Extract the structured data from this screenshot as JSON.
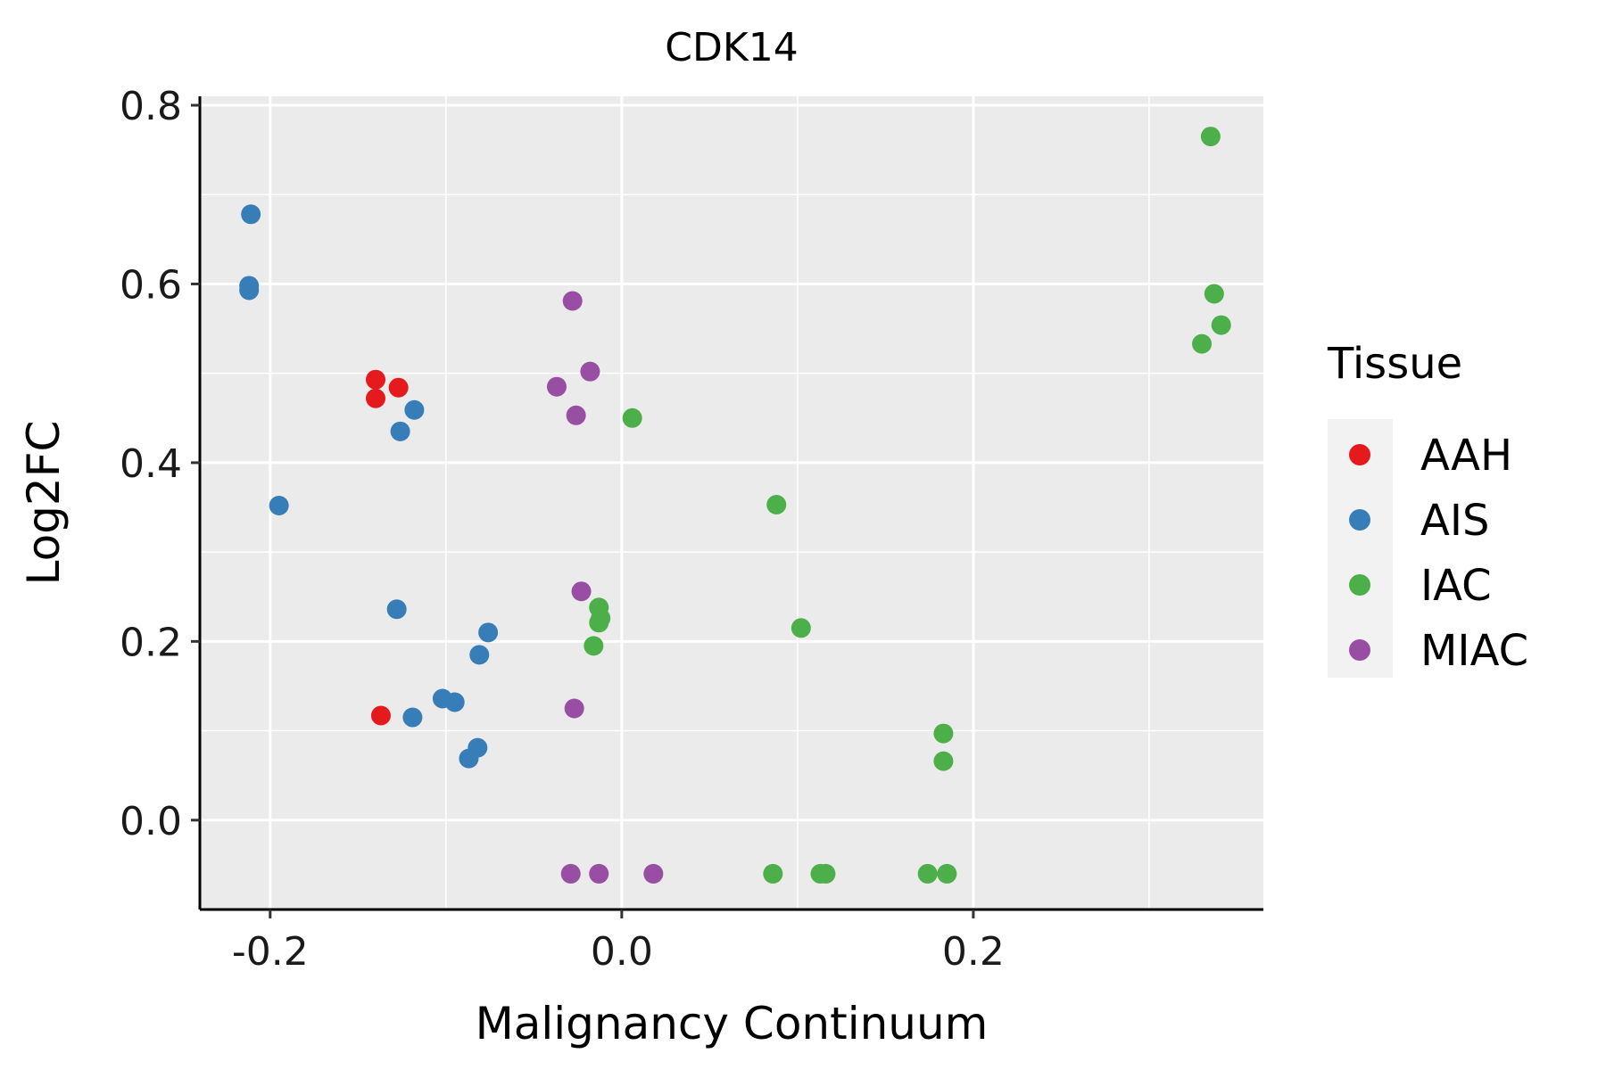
{
  "chart_data": {
    "type": "scatter",
    "title": "CDK14",
    "xlabel": "Malignancy Continuum",
    "ylabel": "Log2FC",
    "xlim": [
      -0.24,
      0.365
    ],
    "ylim": [
      -0.1,
      0.81
    ],
    "xticks": [
      -0.2,
      0.0,
      0.2
    ],
    "xtick_labels": [
      "-0.2",
      "0.0",
      "0.2"
    ],
    "yticks": [
      0.0,
      0.2,
      0.4,
      0.6,
      0.8
    ],
    "ytick_labels": [
      "0.0",
      "0.2",
      "0.4",
      "0.6",
      "0.8"
    ],
    "grid": true,
    "legend": {
      "title": "Tissue",
      "placement": "right",
      "entries": [
        "AAH",
        "AIS",
        "IAC",
        "MIAC"
      ]
    },
    "colors": {
      "AAH": "#e41a1c",
      "AIS": "#377eb8",
      "IAC": "#4daf4a",
      "MIAC": "#984ea3",
      "panel": "#ebebeb",
      "grid": "#ffffff"
    },
    "series": [
      {
        "name": "AAH",
        "points": [
          [
            -0.14,
            0.493
          ],
          [
            -0.127,
            0.484
          ],
          [
            -0.14,
            0.472
          ],
          [
            -0.137,
            0.117
          ]
        ]
      },
      {
        "name": "AIS",
        "points": [
          [
            -0.211,
            0.678
          ],
          [
            -0.212,
            0.598
          ],
          [
            -0.212,
            0.593
          ],
          [
            -0.118,
            0.459
          ],
          [
            -0.126,
            0.435
          ],
          [
            -0.195,
            0.352
          ],
          [
            -0.128,
            0.236
          ],
          [
            -0.076,
            0.21
          ],
          [
            -0.081,
            0.185
          ],
          [
            -0.102,
            0.136
          ],
          [
            -0.095,
            0.132
          ],
          [
            -0.119,
            0.115
          ],
          [
            -0.082,
            0.081
          ],
          [
            -0.087,
            0.069
          ]
        ]
      },
      {
        "name": "IAC",
        "points": [
          [
            0.335,
            0.765
          ],
          [
            0.337,
            0.589
          ],
          [
            0.341,
            0.554
          ],
          [
            0.33,
            0.533
          ],
          [
            0.006,
            0.45
          ],
          [
            0.088,
            0.353
          ],
          [
            -0.013,
            0.238
          ],
          [
            -0.012,
            0.226
          ],
          [
            -0.013,
            0.221
          ],
          [
            0.102,
            0.215
          ],
          [
            -0.016,
            0.195
          ],
          [
            0.183,
            0.097
          ],
          [
            0.183,
            0.066
          ],
          [
            0.086,
            -0.06
          ],
          [
            0.113,
            -0.06
          ],
          [
            0.116,
            -0.06
          ],
          [
            0.174,
            -0.06
          ],
          [
            0.185,
            -0.06
          ]
        ]
      },
      {
        "name": "MIAC",
        "points": [
          [
            -0.028,
            0.581
          ],
          [
            -0.018,
            0.502
          ],
          [
            -0.037,
            0.485
          ],
          [
            -0.026,
            0.453
          ],
          [
            -0.023,
            0.256
          ],
          [
            -0.027,
            0.125
          ],
          [
            -0.029,
            -0.06
          ],
          [
            -0.013,
            -0.06
          ],
          [
            0.018,
            -0.06
          ]
        ]
      }
    ]
  }
}
